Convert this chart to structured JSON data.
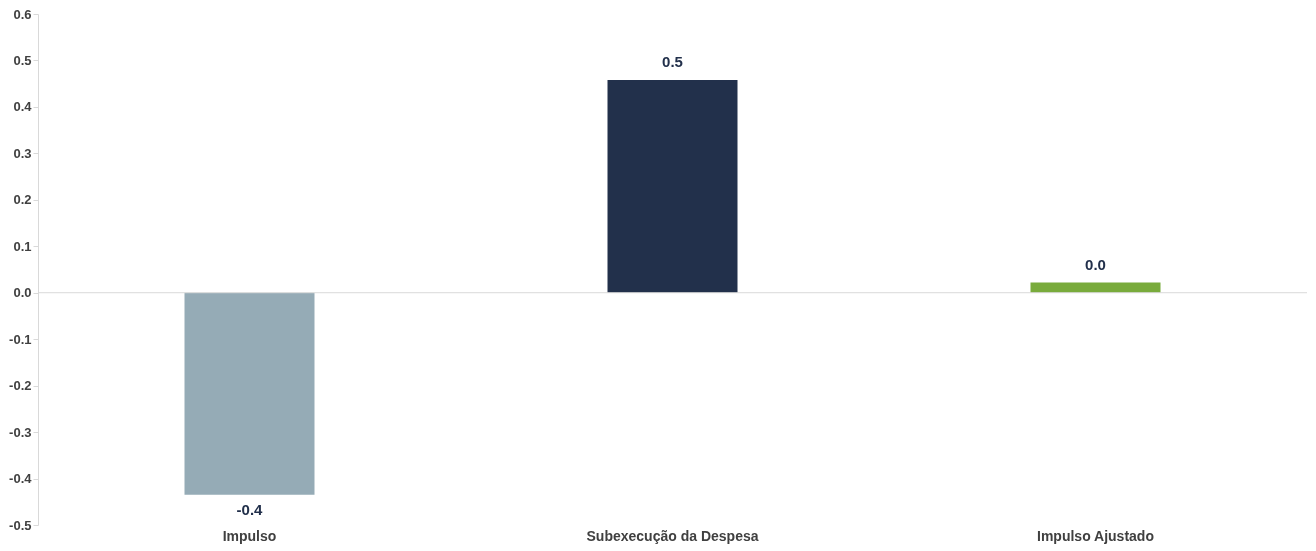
{
  "chart_data": {
    "type": "bar",
    "categories": [
      "Impulso",
      "Subexecução da Despesa",
      "Impulso Ajustado"
    ],
    "values": [
      -0.435,
      0.458,
      0.022
    ],
    "colors": [
      "#95abb6",
      "#22304b",
      "#79ab3c"
    ],
    "value_labels": [
      "-0.4",
      "0.5",
      "0.0"
    ],
    "ylim": [
      -0.5,
      0.6
    ],
    "yticks": [
      {
        "value": -0.5,
        "label": "-0.5"
      },
      {
        "value": -0.4,
        "label": "-0.4"
      },
      {
        "value": -0.3,
        "label": "-0.3"
      },
      {
        "value": -0.2,
        "label": "-0.2"
      },
      {
        "value": -0.1,
        "label": "-0.1"
      },
      {
        "value": 0,
        "label": "0.0"
      },
      {
        "value": 0.1,
        "label": "0.1"
      },
      {
        "value": 0.2,
        "label": "0.2"
      },
      {
        "value": 0.3,
        "label": "0.3"
      },
      {
        "value": 0.4,
        "label": "0.4"
      },
      {
        "value": 0.5,
        "label": "0.5"
      },
      {
        "value": 0.6,
        "label": "0.6"
      }
    ],
    "ref_lines": [
      {
        "axis": "y",
        "value": 0,
        "color": "#d9d9d9"
      }
    ],
    "grid": false
  }
}
